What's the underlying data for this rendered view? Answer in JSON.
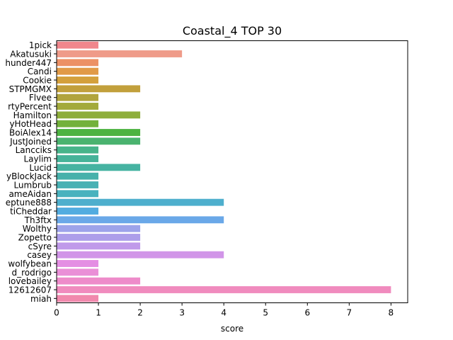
{
  "chart_data": {
    "type": "bar",
    "orientation": "horizontal",
    "title": "Coastal_4 TOP 30",
    "xlabel": "score",
    "ylabel": "",
    "xlim": [
      0,
      8.4
    ],
    "xticks": [
      0,
      1,
      2,
      3,
      4,
      5,
      6,
      7,
      8
    ],
    "grid": false,
    "categories": [
      "1pick",
      "Akatusuki",
      "hunder447",
      "Candi",
      "Cookie",
      "STPMGMX",
      "Flvee",
      "rtyPercent",
      "Hamilton",
      "yHotHead",
      "BoiAlex14",
      "JustJoined",
      "Lancciks",
      "Laylim",
      "Lucid",
      "yBlockJack",
      "Lumbrub",
      "ameAidan",
      "eptune888",
      "tiCheddar",
      "Th3ftx",
      "Wolthy",
      "Zopetto",
      "cSyre",
      "casey",
      "wolfybean",
      "d_rodrigo",
      "lovebailey",
      "12612607",
      "miah"
    ],
    "values": [
      1,
      3,
      1,
      1,
      1,
      2,
      1,
      1,
      2,
      1,
      2,
      2,
      1,
      1,
      2,
      1,
      1,
      1,
      4,
      1,
      4,
      2,
      2,
      2,
      4,
      1,
      1,
      2,
      8,
      1
    ],
    "colors": [
      "#f0868c",
      "#ef9b89",
      "#ec9165",
      "#e19a47",
      "#d4a03c",
      "#c2a03c",
      "#b1a43c",
      "#a3aa3c",
      "#8eae3b",
      "#73b13b",
      "#4db342",
      "#4ab36f",
      "#47b48a",
      "#46b399",
      "#46b3a2",
      "#47b1ab",
      "#48b1b4",
      "#49b2be",
      "#4eafcd",
      "#52ace0",
      "#6aa8e8",
      "#9da3ea",
      "#ad9eea",
      "#c09aea",
      "#d195e8",
      "#e48ee3",
      "#ea8fd7",
      "#ee8bca",
      "#f08bbe",
      "#f189ad"
    ]
  }
}
